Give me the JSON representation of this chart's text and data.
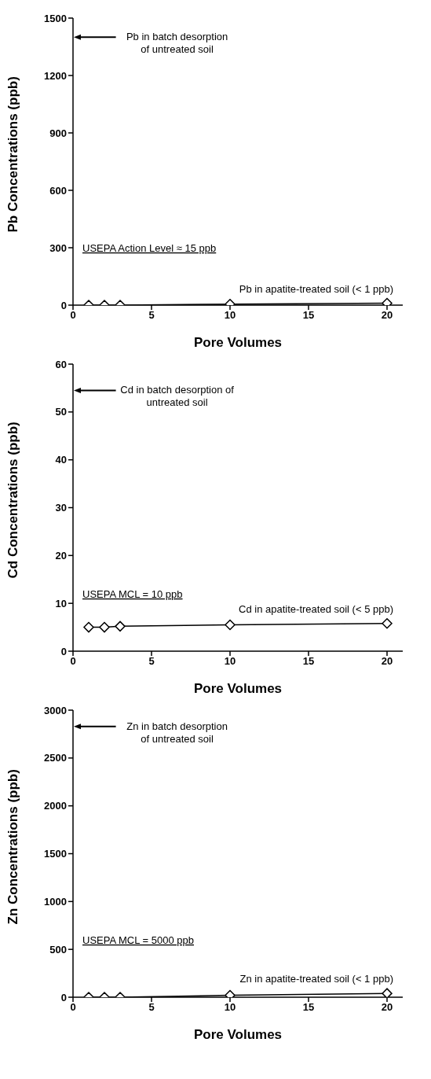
{
  "chart_data": [
    {
      "type": "line",
      "xlabel": "Pore Volumes",
      "ylabel": "Pb Concentrations (ppb)",
      "x": [
        1,
        2,
        3,
        10,
        20
      ],
      "xlim": [
        0,
        21
      ],
      "xticks": [
        0,
        5,
        10,
        15,
        20
      ],
      "ylim": [
        0,
        1500
      ],
      "yticks": [
        0,
        300,
        600,
        900,
        1200,
        1500
      ],
      "marker": "diamond",
      "series": [
        {
          "name": "Pb in apatite-treated soil (< 1 ppb)",
          "color": "#000000",
          "values": [
            0,
            0,
            0,
            5,
            10
          ]
        }
      ],
      "ref_lines": [
        {
          "axis": "y",
          "value": 1400,
          "label": "Pb in batch desorption\nof untreated soil",
          "color": "#000000"
        }
      ],
      "annotations": [
        "USEPA Action Level ≈ 15 ppb"
      ]
    },
    {
      "type": "line",
      "xlabel": "Pore Volumes",
      "ylabel": "Cd Concentrations (ppb)",
      "x": [
        1,
        2,
        3,
        10,
        20
      ],
      "xlim": [
        0,
        21
      ],
      "xticks": [
        0,
        5,
        10,
        15,
        20
      ],
      "ylim": [
        0,
        60
      ],
      "yticks": [
        0,
        10,
        20,
        30,
        40,
        50,
        60
      ],
      "marker": "diamond",
      "series": [
        {
          "name": "Cd in apatite-treated soil (< 5 ppb)",
          "color": "#000000",
          "values": [
            5,
            5,
            5.2,
            5.5,
            5.8
          ]
        }
      ],
      "ref_lines": [
        {
          "axis": "y",
          "value": 54.5,
          "label": "Cd in batch desorption of\nuntreated soil",
          "color": "#000000"
        }
      ],
      "annotations": [
        "USEPA MCL = 10 ppb"
      ]
    },
    {
      "type": "line",
      "xlabel": "Pore Volumes",
      "ylabel": "Zn Concentrations (ppb)",
      "x": [
        1,
        2,
        3,
        10,
        20
      ],
      "xlim": [
        0,
        21
      ],
      "xticks": [
        0,
        5,
        10,
        15,
        20
      ],
      "ylim": [
        0,
        3000
      ],
      "yticks": [
        0,
        500,
        1000,
        1500,
        2000,
        2500,
        3000
      ],
      "marker": "diamond",
      "series": [
        {
          "name": "Zn in apatite-treated soil (< 1 ppb)",
          "color": "#000000",
          "values": [
            0,
            0,
            0,
            20,
            40
          ]
        }
      ],
      "ref_lines": [
        {
          "axis": "y",
          "value": 2830,
          "label": "Zn in batch desorption\nof untreated soil",
          "color": "#000000"
        }
      ],
      "annotations": [
        "USEPA MCL = 5000 ppb"
      ]
    }
  ]
}
